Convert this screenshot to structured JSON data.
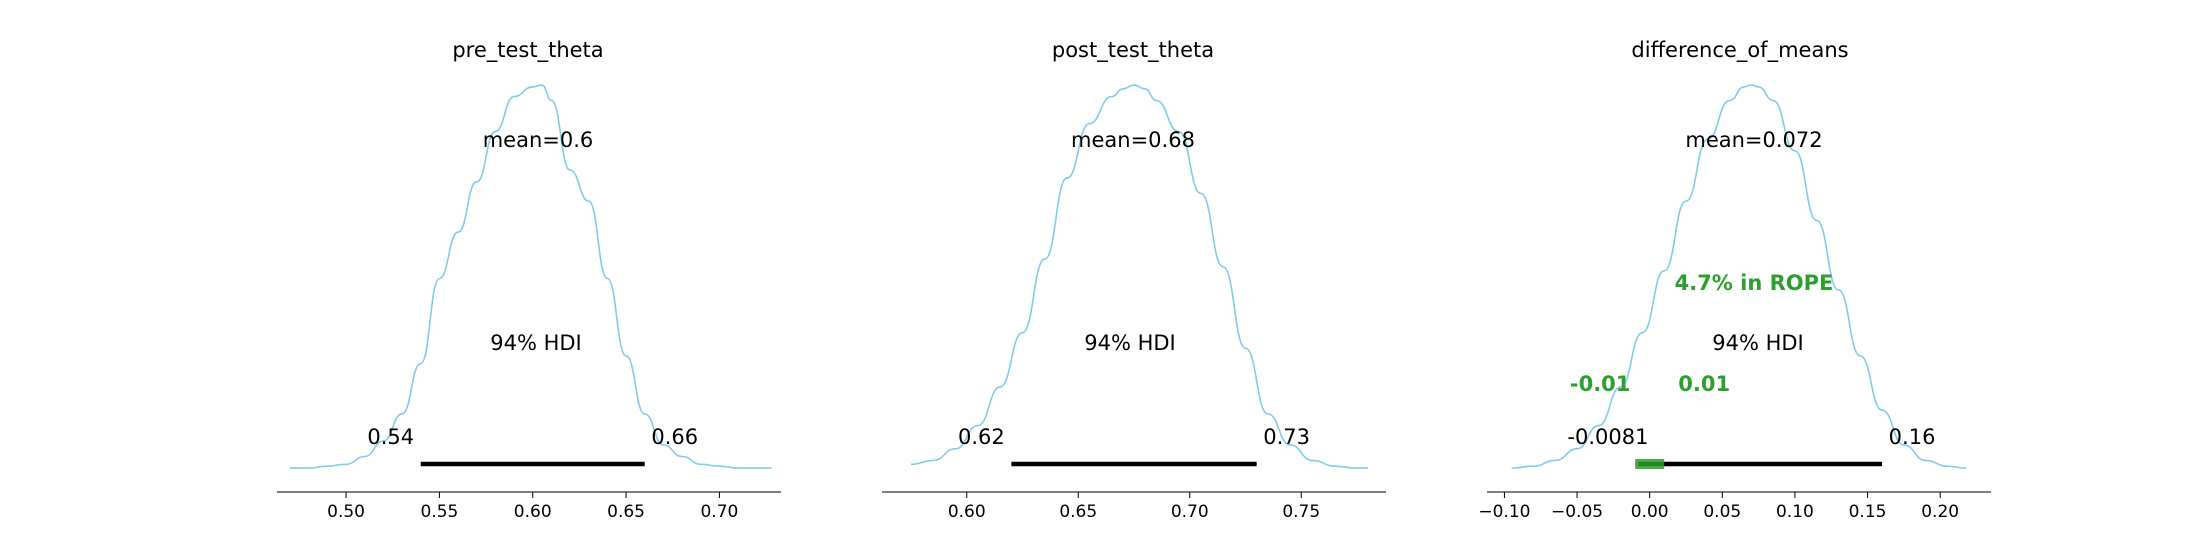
{
  "chart_data": [
    {
      "type": "density",
      "title": "pre_test_theta",
      "mean_label": "mean=0.6",
      "mean": 0.6,
      "sd": 0.033,
      "hdi_prob_label": "94% HDI",
      "hdi": [
        0.54,
        0.66
      ],
      "hdi_labels": [
        "0.54",
        "0.66"
      ],
      "xlim": [
        0.463,
        0.733
      ],
      "kde_x": [
        0.47,
        0.48,
        0.49,
        0.5,
        0.51,
        0.52,
        0.53,
        0.54,
        0.55,
        0.56,
        0.57,
        0.58,
        0.59,
        0.6,
        0.605,
        0.61,
        0.62,
        0.63,
        0.64,
        0.65,
        0.66,
        0.67,
        0.68,
        0.69,
        0.7,
        0.71,
        0.72,
        0.728
      ],
      "kde_y": [
        0.01,
        0.01,
        0.015,
        0.02,
        0.04,
        0.08,
        0.15,
        0.28,
        0.5,
        0.62,
        0.75,
        0.88,
        0.97,
        0.995,
        1.0,
        0.96,
        0.78,
        0.7,
        0.5,
        0.3,
        0.15,
        0.07,
        0.04,
        0.02,
        0.015,
        0.01,
        0.01,
        0.01
      ],
      "xticks": [
        0.5,
        0.55,
        0.6,
        0.65,
        0.7
      ],
      "xtick_labels": [
        "0.50",
        "0.55",
        "0.60",
        "0.65",
        "0.70"
      ]
    },
    {
      "type": "density",
      "title": "post_test_theta",
      "mean_label": "mean=0.68",
      "mean": 0.68,
      "sd": 0.031,
      "hdi_prob_label": "94% HDI",
      "hdi": [
        0.62,
        0.73
      ],
      "hdi_labels": [
        "0.62",
        "0.73"
      ],
      "xlim": [
        0.562,
        0.788
      ],
      "kde_x": [
        0.575,
        0.585,
        0.595,
        0.605,
        0.615,
        0.625,
        0.635,
        0.645,
        0.655,
        0.665,
        0.67,
        0.675,
        0.68,
        0.685,
        0.695,
        0.705,
        0.715,
        0.725,
        0.735,
        0.745,
        0.755,
        0.765,
        0.775,
        0.78
      ],
      "kde_y": [
        0.02,
        0.03,
        0.06,
        0.12,
        0.22,
        0.36,
        0.55,
        0.76,
        0.9,
        0.97,
        0.99,
        1.0,
        0.99,
        0.96,
        0.88,
        0.72,
        0.53,
        0.32,
        0.15,
        0.07,
        0.03,
        0.015,
        0.01,
        0.01
      ],
      "xticks": [
        0.6,
        0.65,
        0.7,
        0.75
      ],
      "xtick_labels": [
        "0.60",
        "0.65",
        "0.70",
        "0.75"
      ]
    },
    {
      "type": "density",
      "title": "difference_of_means",
      "mean_label": "mean=0.072",
      "mean": 0.072,
      "sd": 0.045,
      "hdi_prob_label": "94% HDI",
      "hdi": [
        -0.0081,
        0.16
      ],
      "hdi_labels": [
        "-0.0081",
        "0.16"
      ],
      "rope": [
        -0.01,
        0.01
      ],
      "rope_labels": [
        "-0.01",
        "0.01"
      ],
      "rope_text": "4.7% in ROPE",
      "rope_color": "#2ca02c",
      "kde_color": "#7fcde9",
      "xlim": [
        -0.112,
        0.235
      ],
      "kde_x": [
        -0.095,
        -0.08,
        -0.065,
        -0.05,
        -0.035,
        -0.02,
        -0.005,
        0.01,
        0.025,
        0.04,
        0.055,
        0.065,
        0.07,
        0.075,
        0.085,
        0.1,
        0.115,
        0.13,
        0.145,
        0.16,
        0.175,
        0.19,
        0.205,
        0.218
      ],
      "kde_y": [
        0.01,
        0.015,
        0.03,
        0.06,
        0.12,
        0.22,
        0.36,
        0.52,
        0.7,
        0.86,
        0.96,
        0.995,
        1.0,
        0.995,
        0.96,
        0.83,
        0.65,
        0.47,
        0.3,
        0.16,
        0.07,
        0.03,
        0.015,
        0.01
      ],
      "xticks": [
        -0.1,
        -0.05,
        0.0,
        0.05,
        0.1,
        0.15,
        0.2
      ],
      "xtick_labels": [
        "−0.10",
        "−0.05",
        "0.00",
        "0.05",
        "0.10",
        "0.15",
        "0.20"
      ]
    }
  ]
}
